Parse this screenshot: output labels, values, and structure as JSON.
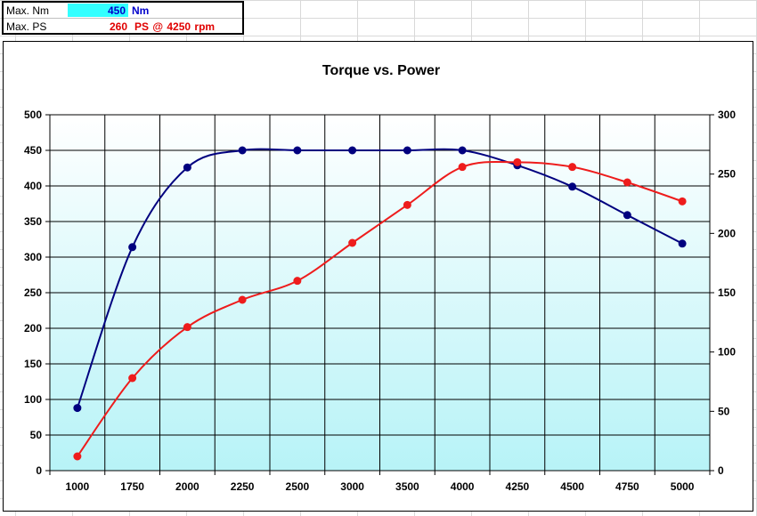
{
  "summary": {
    "max_nm_label": "Max. Nm",
    "max_nm_value": "450",
    "max_nm_unit": "Nm",
    "max_ps_label": "Max. PS",
    "max_ps_value": "260",
    "max_ps_unit": "PS @ 4250  rpm"
  },
  "chart_data": {
    "type": "line",
    "title": "Torque vs. Power",
    "xlabel": "",
    "ylabel": "",
    "y2label": "",
    "categories": [
      "1000",
      "1750",
      "2000",
      "2250",
      "2500",
      "3000",
      "3500",
      "4000",
      "4250",
      "4500",
      "4750",
      "5000"
    ],
    "ylim": [
      0,
      500
    ],
    "y2lim": [
      0,
      300
    ],
    "y_ticks": [
      0,
      50,
      100,
      150,
      200,
      250,
      300,
      350,
      400,
      450,
      500
    ],
    "y2_ticks": [
      0,
      50,
      100,
      150,
      200,
      250,
      300
    ],
    "grid": true,
    "series": [
      {
        "axis": "left",
        "color": "#00007f",
        "values": [
          88,
          314,
          426,
          450,
          450,
          450,
          450,
          450,
          429,
          399,
          359,
          319
        ]
      },
      {
        "axis": "right",
        "color": "#ee1c1c",
        "values": [
          12,
          78,
          121,
          144,
          160,
          192,
          224,
          256,
          260,
          256,
          243,
          227
        ]
      }
    ]
  }
}
